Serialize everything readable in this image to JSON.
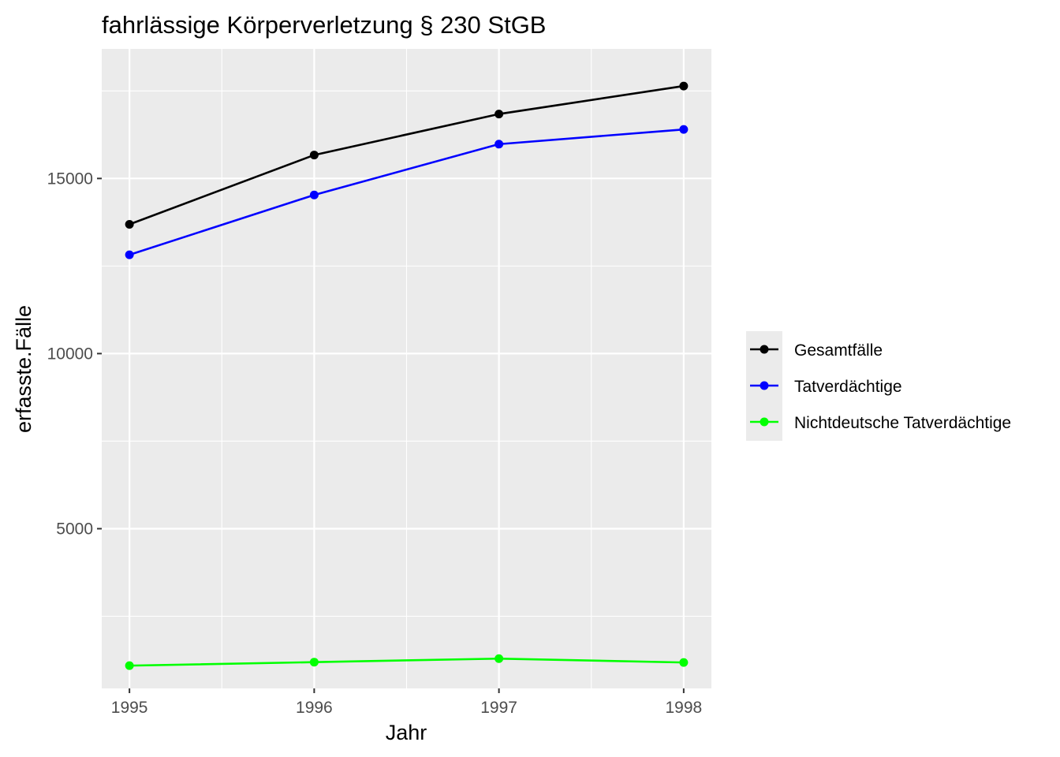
{
  "chart_data": {
    "type": "line",
    "title": "fahrlässige Körperverletzung § 230 StGB",
    "xlabel": "Jahr",
    "ylabel": "erfasste.Fälle",
    "x": [
      1995,
      1996,
      1997,
      1998
    ],
    "x_ticks": [
      "1995",
      "1996",
      "1997",
      "1998"
    ],
    "xlim": [
      1994.85,
      1998.15
    ],
    "y_ticks": [
      "5000",
      "10000",
      "15000"
    ],
    "ylim": [
      440,
      18700
    ],
    "grid": true,
    "legend_position": "right",
    "series": [
      {
        "name": "Gesamtfälle",
        "color": "#000000",
        "values": [
          13690,
          15670,
          16840,
          17640
        ]
      },
      {
        "name": "Tatverdächtige",
        "color": "#0000ff",
        "values": [
          12820,
          14530,
          15980,
          16400
        ]
      },
      {
        "name": "Nichtdeutsche Tatverdächtige",
        "color": "#00ff00",
        "values": [
          1090,
          1190,
          1290,
          1180
        ]
      }
    ]
  }
}
